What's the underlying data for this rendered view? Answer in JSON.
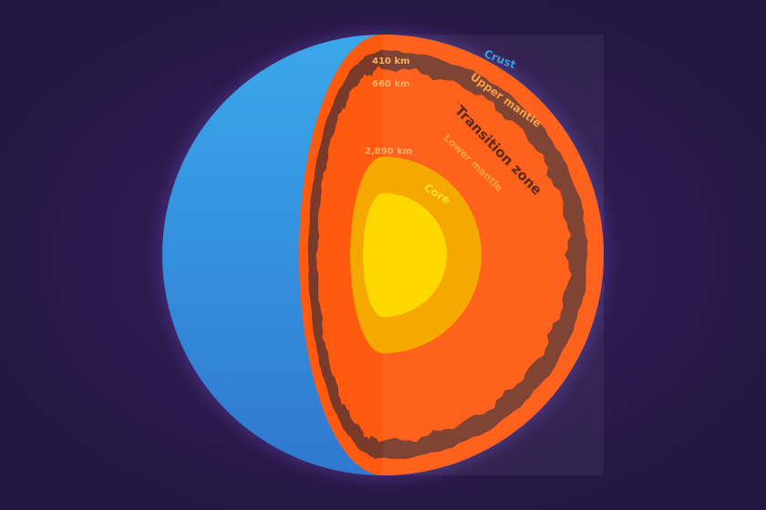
{
  "labels": {
    "crust": "Crust",
    "upper_mantle": "Upper mantle",
    "transition_zone": "Transition zone",
    "lower_mantle": "Lower mantle",
    "core": "Core"
  },
  "depths": {
    "d410": "410 km",
    "d660": "660 km",
    "d2890": "2,890 km"
  },
  "colors": {
    "background": "#2a1b47",
    "crust": "#3a9fe0",
    "mantle": "#ff5a10",
    "transition_zone": "#7a3a2a",
    "outer_core": "#f5a800",
    "inner_core": "#ffd800"
  }
}
